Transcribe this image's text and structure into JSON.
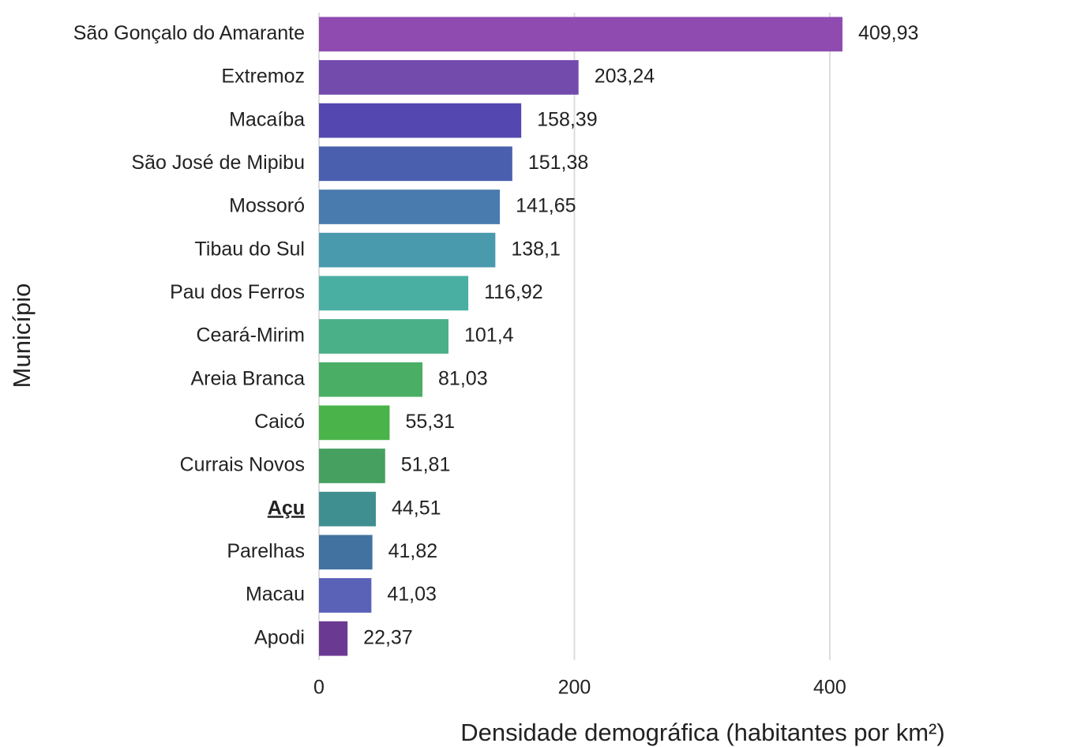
{
  "chart_data": {
    "type": "barh",
    "x_label": "Densidade demográfica (habitantes por km²)",
    "y_label": "Município",
    "categories": [
      "São Gonçalo do Amarante",
      "Extremoz",
      "Macaíba",
      "São José de Mipibu",
      "Mossoró",
      "Tibau do Sul",
      "Pau dos Ferros",
      "Ceará-Mirim",
      "Areia Branca",
      "Caicó",
      "Currais Novos",
      "Açu",
      "Parelhas",
      "Macau",
      "Apodi"
    ],
    "values": [
      409.93,
      203.24,
      158.39,
      151.38,
      141.65,
      138.1,
      116.92,
      101.4,
      81.03,
      55.31,
      51.81,
      44.51,
      41.82,
      41.03,
      22.37
    ],
    "value_labels": [
      "409,93",
      "203,24",
      "158,39",
      "151,38",
      "141,65",
      "138,1",
      "116,92",
      "101,4",
      "81,03",
      "55,31",
      "51,81",
      "44,51",
      "41,82",
      "41,03",
      "22,37"
    ],
    "colors": [
      "#8f4bb0",
      "#724bad",
      "#5448b0",
      "#4a5fae",
      "#4a7bae",
      "#4a9aae",
      "#4aafa3",
      "#4ab088",
      "#4aae65",
      "#4ab349",
      "#46a060",
      "#3f8f90",
      "#42729f",
      "#5a62b8",
      "#6a3a93"
    ],
    "highlight": "Açu",
    "xlim": [
      0,
      580
    ],
    "xticks": [
      0,
      200,
      400
    ],
    "grid": true
  }
}
